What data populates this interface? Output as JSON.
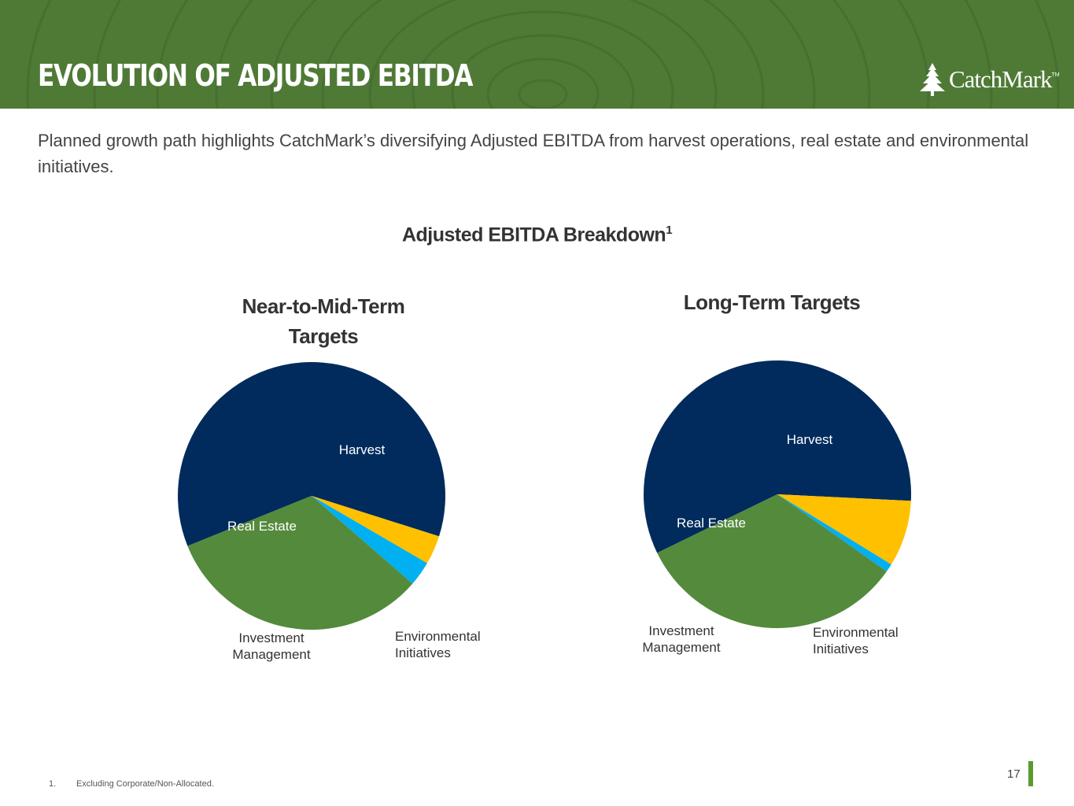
{
  "header": {
    "title": "EVOLUTION OF ADJUSTED EBITDA",
    "logo_text": "CatchMark",
    "logo_tm": "TM",
    "bg_color": "#4f7a36"
  },
  "subtitle": "Planned growth path highlights CatchMark’s diversifying Adjusted EBITDA from harvest operations, real estate and environmental initiatives.",
  "chart_heading": "Adjusted EBITDA Breakdown",
  "chart_heading_sup": "1",
  "chart_data": [
    {
      "type": "pie",
      "title": "Near-to-Mid-Term Targets",
      "title_lines": [
        "Near-to-Mid-Term",
        "Targets"
      ],
      "start_angle_deg": 0,
      "slices": [
        {
          "label": "Harvest",
          "value": 61,
          "color": "#002b5c",
          "label_color": "#ffffff",
          "label_lines": [
            "Harvest"
          ]
        },
        {
          "label": "Environmental Initiatives",
          "value": 3.5,
          "color": "#ffc000",
          "label_color": "#333333",
          "label_lines": [
            "Environmental",
            "Initiatives"
          ]
        },
        {
          "label": "Investment Management",
          "value": 3,
          "color": "#00b0f0",
          "label_color": "#333333",
          "label_lines": [
            "Investment",
            "Management"
          ]
        },
        {
          "label": "Real Estate",
          "value": 32.5,
          "color": "#548a3c",
          "label_color": "#ffffff",
          "label_lines": [
            "Real Estate"
          ]
        }
      ]
    },
    {
      "type": "pie",
      "title": "Long-Term Targets",
      "title_lines": [
        "Long-Term Targets"
      ],
      "start_angle_deg": 0,
      "slices": [
        {
          "label": "Harvest",
          "value": 58,
          "color": "#002b5c",
          "label_color": "#ffffff",
          "label_lines": [
            "Harvest"
          ]
        },
        {
          "label": "Environmental Initiatives",
          "value": 8,
          "color": "#ffc000",
          "label_color": "#333333",
          "label_lines": [
            "Environmental",
            "Initiatives"
          ]
        },
        {
          "label": "Investment Management",
          "value": 1,
          "color": "#00b0f0",
          "label_color": "#333333",
          "label_lines": [
            "Investment",
            "Management"
          ]
        },
        {
          "label": "Real Estate",
          "value": 33,
          "color": "#548a3c",
          "label_color": "#ffffff",
          "label_lines": [
            "Real Estate"
          ]
        }
      ]
    }
  ],
  "footnote": {
    "number": "1.",
    "text": "Excluding Corporate/Non-Allocated."
  },
  "page_number": "17"
}
